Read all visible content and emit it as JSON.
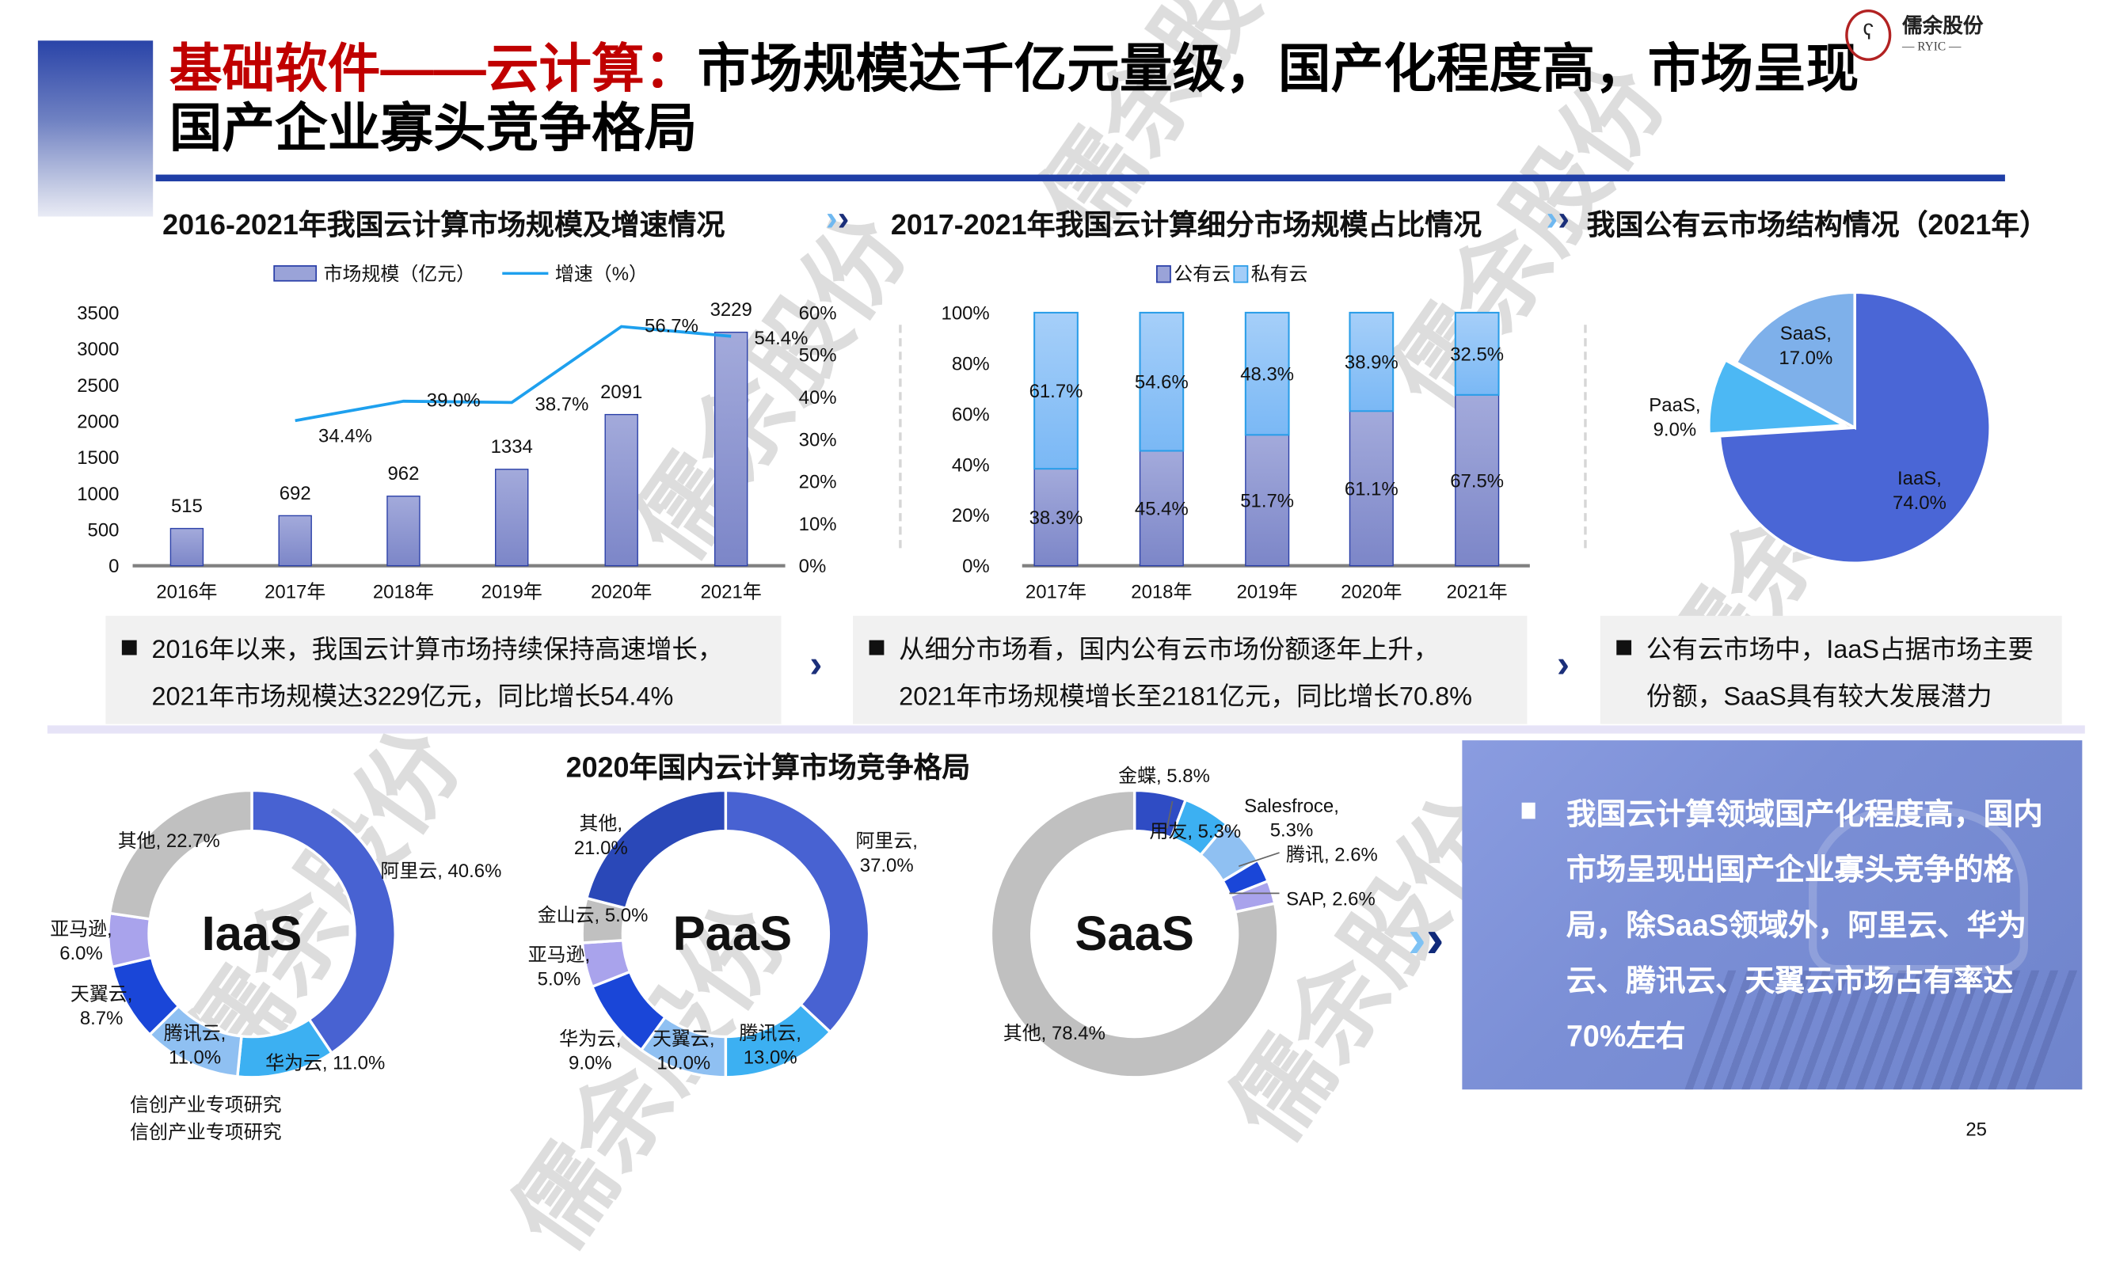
{
  "header": {
    "title_red": "基础软件——云计算：",
    "title_black": "市场规模达千亿元量级，国产化程度高，市场呈现国产企业寡头竞争格局",
    "logo_name": "儒余股份",
    "logo_sub": "— RYIC —"
  },
  "sections": {
    "s1": "2016-2021年我国云计算市场规模及增速情况",
    "s2": "2017-2021年我国云计算细分市场规模占比情况",
    "s3": "我国公有云市场结构情况（2021年）",
    "donut_title": "2020年国内云计算市场竞争格局"
  },
  "summaries": [
    {
      "line1": "2016年以来，我国云计算市场持续保持高速增长，",
      "line2": "2021年市场规模达3229亿元，同比增长54.4%"
    },
    {
      "line1": "从细分市场看，国内公有云市场份额逐年上升，",
      "line2": "2021年市场规模增长至2181亿元，同比增长70.8%"
    },
    {
      "line1": "公有云市场中，IaaS占据市场主要",
      "line2": "份额，SaaS具有较大发展潜力"
    }
  ],
  "conclusion": "我国云计算领域国产化程度高，国内市场呈现出国产企业寡头竞争的格局，除SaaS领域外，阿里云、华为云、腾讯云、天翼云市场占有率达70%左右",
  "source_lines": [
    "信创产业专项研究",
    "信创产业专项研究"
  ],
  "page_number": "25",
  "watermark": "儒余股份",
  "colors": {
    "accent": "#1f3ea6",
    "title_red": "#c00000",
    "bar": "#8f99d2",
    "line": "#1ea0ee",
    "private": "#8cc2f7"
  },
  "chart_data": [
    {
      "type": "bar+line",
      "title": "2016-2021年我国云计算市场规模及增速情况",
      "categories": [
        "2016年",
        "2017年",
        "2018年",
        "2019年",
        "2020年",
        "2021年"
      ],
      "series": [
        {
          "name": "市场规模（亿元）",
          "type": "bar",
          "axis": "left",
          "values": [
            515,
            692,
            962,
            1334,
            2091,
            3229
          ]
        },
        {
          "name": "增速（%）",
          "type": "line",
          "axis": "right",
          "values": [
            null,
            34.4,
            39.0,
            38.7,
            56.7,
            54.4
          ]
        }
      ],
      "yticks_left": [
        "0",
        "500",
        "1000",
        "1500",
        "2000",
        "2500",
        "3000",
        "3500"
      ],
      "yticks_right": [
        "0%",
        "10%",
        "20%",
        "30%",
        "40%",
        "50%",
        "60%"
      ],
      "ylim_left": [
        0,
        3500
      ],
      "ylim_right": [
        0,
        60
      ],
      "legend": "top-center",
      "grid": false
    },
    {
      "type": "stacked-bar",
      "title": "2017-2021年我国云计算细分市场规模占比情况",
      "categories": [
        "2017年",
        "2018年",
        "2019年",
        "2020年",
        "2021年"
      ],
      "series": [
        {
          "name": "公有云",
          "values": [
            38.3,
            45.4,
            51.7,
            61.1,
            67.5
          ]
        },
        {
          "name": "私有云",
          "values": [
            61.7,
            54.6,
            48.3,
            38.9,
            32.5
          ]
        }
      ],
      "yticks": [
        "0%",
        "20%",
        "40%",
        "60%",
        "80%",
        "100%"
      ],
      "ylim": [
        0,
        100
      ],
      "legend": "top-center",
      "grid": false
    },
    {
      "type": "pie",
      "title": "我国公有云市场结构情况（2021年）",
      "slices": [
        {
          "label": "IaaS",
          "value": 74.0,
          "color": "#4a66d6"
        },
        {
          "label": "PaaS",
          "value": 9.0,
          "color": "#4cb8f4"
        },
        {
          "label": "SaaS",
          "value": 17.0,
          "color": "#7eb0ea"
        }
      ]
    },
    {
      "type": "donut",
      "center_label": "IaaS",
      "slices": [
        {
          "label": "阿里云",
          "value": 40.6,
          "color": "#4862d2"
        },
        {
          "label": "华为云",
          "value": 11.0,
          "color": "#3cb0f2"
        },
        {
          "label": "腾讯云",
          "value": 11.0,
          "color": "#8fc0f2"
        },
        {
          "label": "天翼云",
          "value": 8.7,
          "color": "#1a46d8"
        },
        {
          "label": "亚马逊",
          "value": 6.0,
          "color": "#a9a3ec"
        },
        {
          "label": "其他",
          "value": 22.7,
          "color": "#c0c0c0"
        }
      ]
    },
    {
      "type": "donut",
      "center_label": "PaaS",
      "slices": [
        {
          "label": "阿里云",
          "value": 37.0,
          "color": "#4862d2"
        },
        {
          "label": "腾讯云",
          "value": 13.0,
          "color": "#3cb0f2"
        },
        {
          "label": "天翼云",
          "value": 10.0,
          "color": "#8fc0f2"
        },
        {
          "label": "华为云",
          "value": 9.0,
          "color": "#1a46d8"
        },
        {
          "label": "亚马逊",
          "value": 5.0,
          "color": "#a9a3ec"
        },
        {
          "label": "金山云",
          "value": 5.0,
          "color": "#c0c0c0"
        },
        {
          "label": "其他",
          "value": 21.0,
          "color": "#2a48b8"
        }
      ]
    },
    {
      "type": "donut",
      "center_label": "SaaS",
      "slices": [
        {
          "label": "金蝶",
          "value": 5.8,
          "color": "#2f4cc4"
        },
        {
          "label": "用友",
          "value": 5.3,
          "color": "#3cb0f2"
        },
        {
          "label": "Salesfroce",
          "value": 5.3,
          "color": "#8fc0f2"
        },
        {
          "label": "腾讯",
          "value": 2.6,
          "color": "#1a46d8"
        },
        {
          "label": "SAP",
          "value": 2.6,
          "color": "#a9a3ec"
        },
        {
          "label": "其他",
          "value": 78.4,
          "color": "#c0c0c0"
        }
      ]
    }
  ]
}
